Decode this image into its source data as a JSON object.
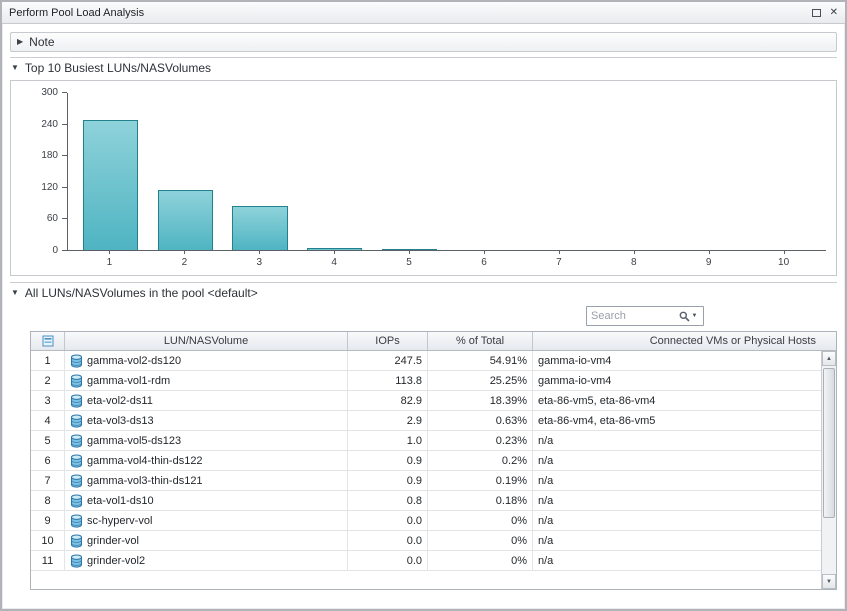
{
  "window": {
    "title": "Perform Pool Load Analysis"
  },
  "icons": {
    "collapse_collapsed": "▶",
    "collapse_expanded": "▼",
    "close": "✕",
    "scroll_up": "▲",
    "scroll_down": "▼",
    "search_caret": "▼"
  },
  "note_section": {
    "title": "Note"
  },
  "chart_section": {
    "title": "Top 10 Busiest LUNs/NASVolumes"
  },
  "chart_data": {
    "type": "bar",
    "title": "Top 10 Busiest LUNs/NASVolumes",
    "categories": [
      "1",
      "2",
      "3",
      "4",
      "5",
      "6",
      "7",
      "8",
      "9",
      "10"
    ],
    "values": [
      247.5,
      113.8,
      82.9,
      2.9,
      1.0,
      0.9,
      0.9,
      0.8,
      0.0,
      0.0
    ],
    "xlabel": "",
    "ylabel": "",
    "ylim": [
      0,
      300
    ],
    "yticks": [
      0,
      60,
      120,
      180,
      240,
      300
    ],
    "grid": false,
    "legend": false,
    "bar_fill": "#4fb4c2",
    "bar_fill_light": "#8ed2da",
    "bar_border": "#23818f"
  },
  "table_section": {
    "title": "All LUNs/NASVolumes in the pool <default>",
    "search": {
      "placeholder": "Search"
    },
    "columns": {
      "lun": "LUN/NASVolume",
      "iops": "IOPs",
      "pct": "% of Total",
      "hosts": "Connected VMs or Physical Hosts"
    },
    "rows": [
      {
        "n": "1",
        "lun": "gamma-vol2-ds120",
        "iops": "247.5",
        "pct": "54.91%",
        "hosts": "gamma-io-vm4"
      },
      {
        "n": "2",
        "lun": "gamma-vol1-rdm",
        "iops": "113.8",
        "pct": "25.25%",
        "hosts": "gamma-io-vm4"
      },
      {
        "n": "3",
        "lun": "eta-vol2-ds11",
        "iops": "82.9",
        "pct": "18.39%",
        "hosts": "eta-86-vm5, eta-86-vm4"
      },
      {
        "n": "4",
        "lun": "eta-vol3-ds13",
        "iops": "2.9",
        "pct": "0.63%",
        "hosts": "eta-86-vm4, eta-86-vm5"
      },
      {
        "n": "5",
        "lun": "gamma-vol5-ds123",
        "iops": "1.0",
        "pct": "0.23%",
        "hosts": "n/a"
      },
      {
        "n": "6",
        "lun": "gamma-vol4-thin-ds122",
        "iops": "0.9",
        "pct": "0.2%",
        "hosts": "n/a"
      },
      {
        "n": "7",
        "lun": "gamma-vol3-thin-ds121",
        "iops": "0.9",
        "pct": "0.19%",
        "hosts": "n/a"
      },
      {
        "n": "8",
        "lun": "eta-vol1-ds10",
        "iops": "0.8",
        "pct": "0.18%",
        "hosts": "n/a"
      },
      {
        "n": "9",
        "lun": "sc-hyperv-vol",
        "iops": "0.0",
        "pct": "0%",
        "hosts": "n/a"
      },
      {
        "n": "10",
        "lun": "grinder-vol",
        "iops": "0.0",
        "pct": "0%",
        "hosts": "n/a"
      },
      {
        "n": "11",
        "lun": "grinder-vol2",
        "iops": "0.0",
        "pct": "0%",
        "hosts": "n/a"
      }
    ]
  }
}
